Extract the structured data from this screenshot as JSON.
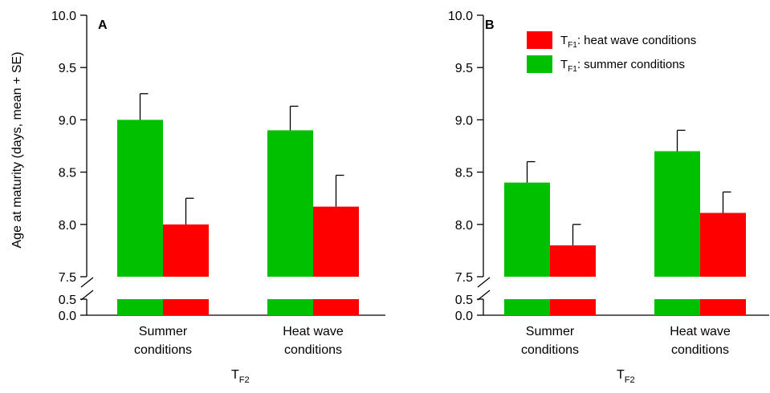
{
  "y_axis_label": "Age at maturity (days, mean + SE)",
  "y_ticks_upper": [
    "7.5",
    "8.0",
    "8.5",
    "9.0",
    "9.5",
    "10.0"
  ],
  "y_ticks_lower": [
    "0.0",
    "0.5"
  ],
  "legend": {
    "heat_prefix": "T",
    "heat_sub": "F1",
    "heat_text": ": heat wave conditions",
    "summer_prefix": "T",
    "summer_sub": "F1",
    "summer_text": ": summer conditions"
  },
  "colors": {
    "heat": "#ff0000",
    "summer": "#00c000"
  },
  "chart_data": [
    {
      "type": "bar",
      "panel_label": "A",
      "categories": [
        {
          "line1": "Summer",
          "line2": "conditions"
        },
        {
          "line1": "Heat wave",
          "line2": "conditions"
        }
      ],
      "x_axis_label_main": "T",
      "x_axis_label_sub": "F2",
      "ylabel": "Age at maturity (days, mean + SE)",
      "ylim": [
        0,
        10
      ],
      "y_axis_break": [
        0.5,
        7.5
      ],
      "series": [
        {
          "name": "TF1: summer conditions",
          "color": "#00c000",
          "values": [
            9.0,
            8.9
          ],
          "se": [
            0.25,
            0.23
          ]
        },
        {
          "name": "TF1: heat wave conditions",
          "color": "#ff0000",
          "values": [
            8.0,
            8.17
          ],
          "se": [
            0.25,
            0.3
          ]
        }
      ]
    },
    {
      "type": "bar",
      "panel_label": "B",
      "categories": [
        {
          "line1": "Summer",
          "line2": "conditions"
        },
        {
          "line1": "Heat wave",
          "line2": "conditions"
        }
      ],
      "x_axis_label_main": "T",
      "x_axis_label_sub": "F2",
      "ylim": [
        0,
        10
      ],
      "y_axis_break": [
        0.5,
        7.5
      ],
      "series": [
        {
          "name": "TF1: summer conditions",
          "color": "#00c000",
          "values": [
            8.4,
            8.7
          ],
          "se": [
            0.2,
            0.2
          ]
        },
        {
          "name": "TF1: heat wave conditions",
          "color": "#ff0000",
          "values": [
            7.8,
            8.11
          ],
          "se": [
            0.2,
            0.2
          ]
        }
      ]
    }
  ]
}
